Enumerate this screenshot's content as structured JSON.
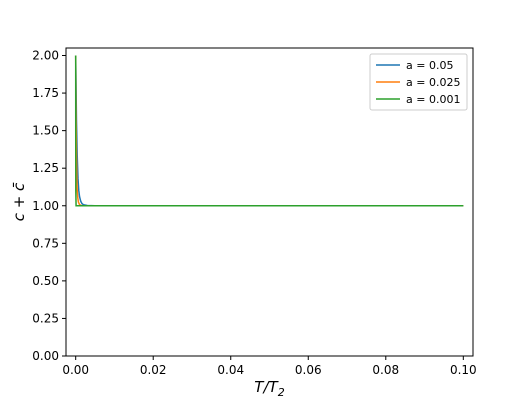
{
  "chart_data": {
    "type": "line",
    "title": "",
    "xlabel": "T/T",
    "xlabel_sub": "2",
    "ylabel": "c + c̄",
    "xlim": [
      -0.0025,
      0.1025
    ],
    "ylim": [
      0.0,
      2.05
    ],
    "x_ticks": [
      0.0,
      0.02,
      0.04,
      0.06,
      0.08,
      0.1
    ],
    "x_tick_labels": [
      "0.00",
      "0.02",
      "0.04",
      "0.06",
      "0.08",
      "0.10"
    ],
    "y_ticks": [
      0.0,
      0.25,
      0.5,
      0.75,
      1.0,
      1.25,
      1.5,
      1.75,
      2.0
    ],
    "y_tick_labels": [
      "0.00",
      "0.25",
      "0.50",
      "0.75",
      "1.00",
      "1.25",
      "1.50",
      "1.75",
      "2.00"
    ],
    "grid": false,
    "legend_position": "top-right",
    "series": [
      {
        "name": "a = 0.05",
        "color": "#1f77b4",
        "points": [
          [
            0.0,
            2.0
          ],
          [
            0.0002,
            1.57
          ],
          [
            0.0004,
            1.33
          ],
          [
            0.0006,
            1.18
          ],
          [
            0.0008,
            1.1
          ],
          [
            0.001,
            1.06
          ],
          [
            0.0013,
            1.03
          ],
          [
            0.0016,
            1.015
          ],
          [
            0.002,
            1.007
          ],
          [
            0.003,
            1.002
          ],
          [
            0.005,
            1.0
          ],
          [
            0.1,
            1.0
          ]
        ]
      },
      {
        "name": "a = 0.025",
        "color": "#ff7f0e",
        "points": [
          [
            0.0,
            2.0
          ],
          [
            0.0001,
            1.57
          ],
          [
            0.0002,
            1.33
          ],
          [
            0.0003,
            1.18
          ],
          [
            0.0004,
            1.1
          ],
          [
            0.0005,
            1.06
          ],
          [
            0.0007,
            1.025
          ],
          [
            0.001,
            1.007
          ],
          [
            0.0015,
            1.001
          ],
          [
            0.0025,
            1.0
          ],
          [
            0.1,
            1.0
          ]
        ]
      },
      {
        "name": "a = 0.001",
        "color": "#2ca02c",
        "points": [
          [
            0.0,
            2.0
          ],
          [
            1e-05,
            1.5
          ],
          [
            3e-05,
            1.1
          ],
          [
            0.0001,
            1.0
          ],
          [
            0.1,
            1.0
          ]
        ]
      }
    ]
  }
}
